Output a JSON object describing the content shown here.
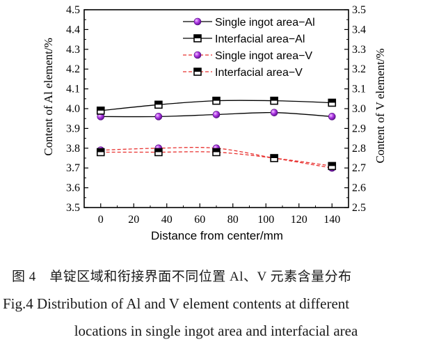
{
  "chart_data": {
    "type": "line",
    "xlabel": "Distance from center/mm",
    "ylabel_left": "Content of Al element/%",
    "ylabel_right": "Content of V element/%",
    "x_ticks": [
      0,
      20,
      40,
      60,
      80,
      100,
      120,
      140
    ],
    "xlim": [
      -10,
      150
    ],
    "ylim_left": [
      3.5,
      4.5
    ],
    "ylim_right": [
      2.5,
      3.5
    ],
    "y_ticks_left": [
      "3.5",
      "3.6",
      "3.7",
      "3.8",
      "3.9",
      "4.0",
      "4.1",
      "4.2",
      "4.3",
      "4.4",
      "4.5"
    ],
    "y_ticks_right": [
      "2.5",
      "2.6",
      "2.7",
      "2.8",
      "2.9",
      "3.0",
      "3.1",
      "3.2",
      "3.3",
      "3.4",
      "3.5"
    ],
    "x": [
      0,
      35,
      70,
      105,
      140
    ],
    "legend_position": "top-right",
    "series": [
      {
        "name": "Single ingot area−Al",
        "axis": "left",
        "marker": "circle",
        "line": "solid",
        "color": "#000000",
        "marker_color": "#9b1fd6",
        "values": [
          3.96,
          3.96,
          3.97,
          3.98,
          3.96
        ]
      },
      {
        "name": "Interfacial area−Al",
        "axis": "left",
        "marker": "square",
        "line": "solid",
        "color": "#000000",
        "marker_color": "#000000",
        "values": [
          3.99,
          4.02,
          4.04,
          4.04,
          4.03
        ]
      },
      {
        "name": "Single ingot area−V",
        "axis": "right",
        "marker": "circle",
        "line": "dashed",
        "color": "#e8312f",
        "marker_color": "#9b1fd6",
        "values": [
          2.79,
          2.8,
          2.8,
          2.75,
          2.7
        ]
      },
      {
        "name": "Interfacial area−V",
        "axis": "right",
        "marker": "square",
        "line": "dashed",
        "color": "#e8312f",
        "marker_color": "#000000",
        "values": [
          2.78,
          2.78,
          2.78,
          2.75,
          2.71
        ]
      }
    ]
  },
  "caption": {
    "chinese": "图 4　单锭区域和衔接界面不同位置 Al、V 元素含量分布",
    "english_line1": "Fig.4   Distribution of Al and V element contents at different",
    "english_line2": "locations in single ingot area and interfacial area"
  }
}
